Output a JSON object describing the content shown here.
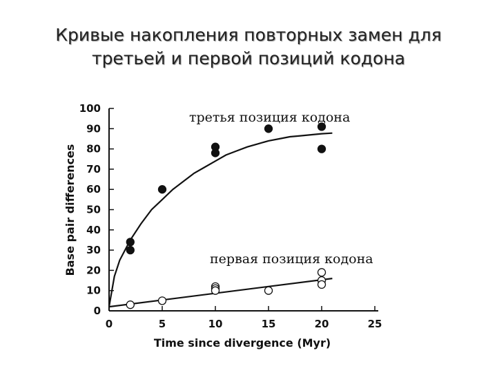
{
  "slide": {
    "title_line1": "Кривые накопления повторных замен для",
    "title_line2": "третьей и первой позиций кодона"
  },
  "chart_data": {
    "type": "scatter",
    "xlabel": "Time since divergence (Myr)",
    "ylabel": "Base pair differences",
    "xlim": [
      0,
      25
    ],
    "ylim": [
      0,
      100
    ],
    "xticks": [
      0,
      5,
      10,
      15,
      20,
      25
    ],
    "yticks": [
      0,
      10,
      20,
      30,
      40,
      50,
      60,
      70,
      80,
      90,
      100
    ],
    "grid": false,
    "series": [
      {
        "name": "третья позиция кодона",
        "marker": "filled",
        "color": "#111111",
        "points": [
          [
            2,
            34
          ],
          [
            2,
            30
          ],
          [
            5,
            60
          ],
          [
            10,
            81
          ],
          [
            10,
            78
          ],
          [
            15,
            90
          ],
          [
            20,
            91
          ],
          [
            20,
            80
          ]
        ],
        "curve": [
          [
            0,
            2
          ],
          [
            0.5,
            17
          ],
          [
            1,
            25
          ],
          [
            2,
            35
          ],
          [
            3,
            43
          ],
          [
            4,
            50
          ],
          [
            5,
            55
          ],
          [
            6,
            60
          ],
          [
            7,
            64
          ],
          [
            8,
            68
          ],
          [
            9,
            71
          ],
          [
            10,
            74
          ],
          [
            11,
            77
          ],
          [
            12,
            79
          ],
          [
            13,
            81
          ],
          [
            14,
            82.5
          ],
          [
            15,
            84
          ],
          [
            16,
            85
          ],
          [
            17,
            86
          ],
          [
            18,
            86.5
          ],
          [
            19,
            87
          ],
          [
            20,
            87.5
          ],
          [
            21,
            87.8
          ]
        ]
      },
      {
        "name": "первая позиция кодона",
        "marker": "open",
        "color": "#111111",
        "points": [
          [
            2,
            3
          ],
          [
            5,
            5
          ],
          [
            10,
            12
          ],
          [
            10,
            11
          ],
          [
            10,
            10
          ],
          [
            15,
            10
          ],
          [
            20,
            19
          ],
          [
            20,
            15
          ],
          [
            20,
            13
          ]
        ],
        "curve": [
          [
            0,
            2
          ],
          [
            21,
            16
          ]
        ]
      }
    ]
  }
}
